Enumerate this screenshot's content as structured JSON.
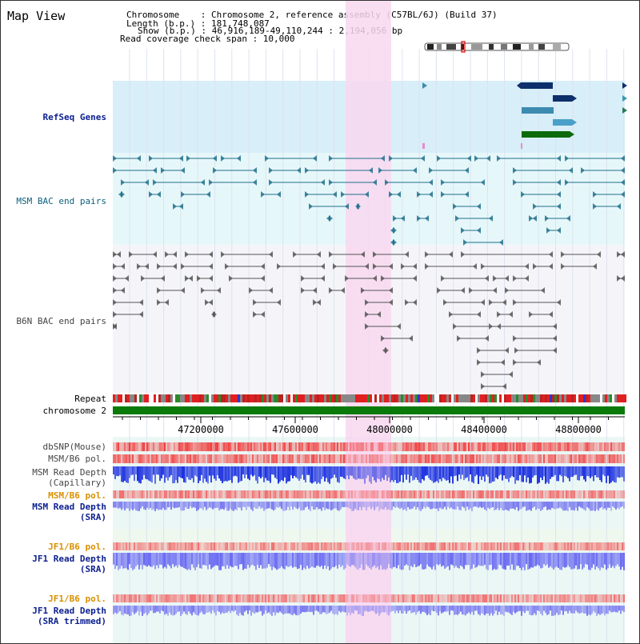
{
  "header": {
    "title": "Map View",
    "info_lines": [
      "Chromosome    : Chromosome 2, reference assembly (C57BL/6J) (Build 37)",
      "Length (b.p.) : 181,748,087",
      "Show (b.p.) : 46,916,189-49,110,244 : 2,194,056 bp",
      "Read coverage check span : 10,000"
    ]
  },
  "tracks": {
    "refseq": "RefSeq Genes",
    "msm_bac": "MSM BAC end pairs",
    "b6n_bac": "B6N BAC end pairs",
    "repeat": "Repeat",
    "chromosome": "chromosome 2",
    "dbsnp": "dbSNP(Mouse)",
    "msm_b6_pol": "MSM/B6 pol.",
    "msm_depth_cap_1": "MSM Read Depth",
    "msm_depth_cap_2": "(Capillary)",
    "msm_b6_pol_2": "MSM/B6 pol.",
    "msm_depth_sra_1": "MSM Read Depth",
    "msm_depth_sra_2": "(SRA)",
    "jf1_b6_pol": "JF1/B6 pol.",
    "jf1_depth_sra_1": "JF1 Read Depth",
    "jf1_depth_sra_2": "(SRA)",
    "jf1_b6_pol_2": "JF1/B6 pol.",
    "jf1_depth_trim_1": "JF1 Read Depth",
    "jf1_depth_trim_2": "(SRA trimmed)"
  },
  "axis": {
    "ticks": [
      "47200000",
      "47600000",
      "48000000",
      "48400000",
      "48800000"
    ]
  },
  "colors": {
    "highlight": "#f8d8f0",
    "refseq_bg": "#d8eef8",
    "gene_dark": "#0d2f6b",
    "gene_teal": "#3c8bb0",
    "gene_green": "#0b6b0b",
    "msm_bac": "#1f6f8b",
    "b6n_bac": "#555555",
    "chromosome": "#0a7a0a"
  }
}
